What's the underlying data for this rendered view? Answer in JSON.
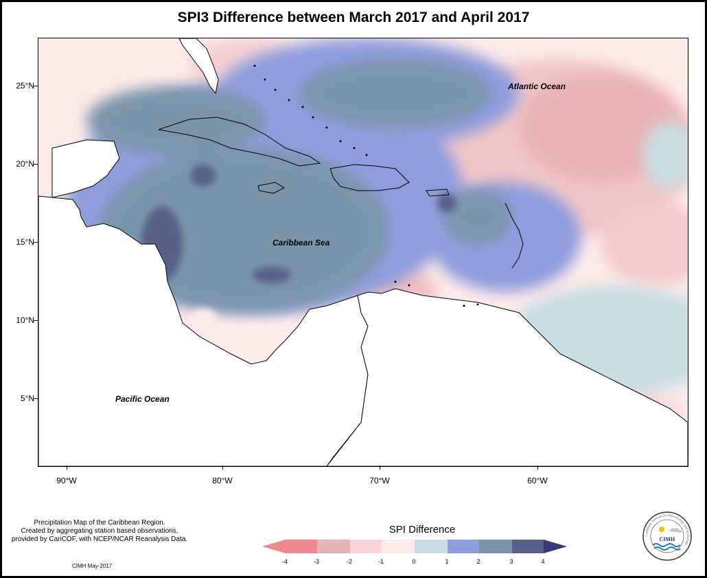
{
  "title": "SPI3 Difference between March 2017 and April 2017",
  "map": {
    "x_axis_labels": [
      "90°W",
      "80°W",
      "70°W",
      "60°W"
    ],
    "y_axis_labels": [
      "25°N",
      "20°N",
      "15°N",
      "10°N",
      "5°N"
    ],
    "region_labels": {
      "atlantic": "Atlantic Ocean",
      "caribbean": "Caribbean Sea",
      "pacific": "Pacific Ocean"
    }
  },
  "note": {
    "line1": "Precipitation Map of the Caribbean Region.",
    "line2": "Created by aggregating station based observations,",
    "line3": "provided by CariCOF, with NCEP/NCAR Reanalysis Data."
  },
  "credit": "CIMH May-2017",
  "legend": {
    "title": "SPI Difference",
    "labels": [
      "-4",
      "-3",
      "-2",
      "-1",
      "0",
      "1",
      "2",
      "3",
      "4"
    ],
    "colors": [
      "#f08890",
      "#e6b4b6",
      "#fad2d8",
      "#fdeaea",
      "#c9dde2",
      "#8f9ddd",
      "#7a95aa",
      "#566088",
      "#3a3870"
    ]
  },
  "logo": {
    "acronym": "CIMH",
    "ring_text": "Caribbean Institute for Meteorology and Hydrology"
  }
}
